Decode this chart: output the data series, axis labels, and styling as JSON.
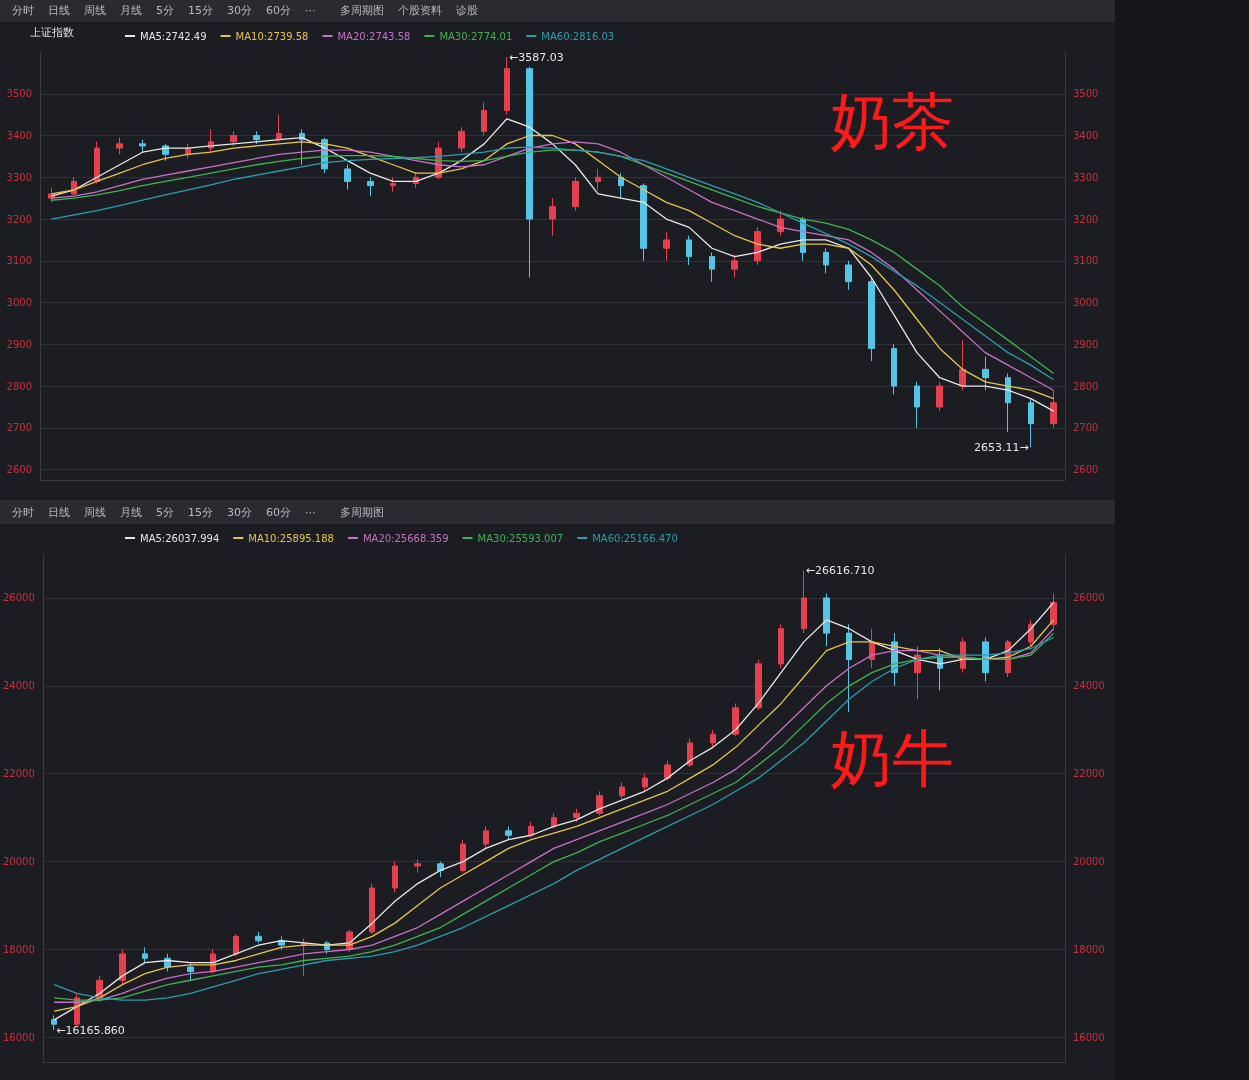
{
  "chart_data": [
    {
      "type": "candlestick",
      "title": "奶茶",
      "subtitle": "上证指数",
      "colors": [
        "#e5404e",
        "#e5404e",
        "#e5404e",
        "#e5404e",
        "#54c5e6",
        "#54c5e6",
        "#e5404e",
        "#e5404e",
        "#e5404e",
        "#54c5e6",
        "#e5404e",
        "#54c5e6",
        "#54c5e6",
        "#54c5e6",
        "#54c5e6",
        "#e5404e",
        "#e5404e",
        "#e5404e",
        "#e5404e",
        "#e5404e",
        "#e5404e",
        "#54c5e6",
        "#e5404e",
        "#e5404e",
        "#e5404e",
        "#54c5e6",
        "#54c5e6",
        "#e5404e",
        "#54c5e6",
        "#54c5e6",
        "#e5404e",
        "#e5404e",
        "#e5404e",
        "#54c5e6",
        "#54c5e6",
        "#54c5e6",
        "#54c5e6",
        "#54c5e6",
        "#54c5e6",
        "#e5404e",
        "#e5404e",
        "#54c5e6",
        "#54c5e6",
        "#54c5e6",
        "#e5404e"
      ],
      "categories": [
        null,
        null,
        null,
        null,
        null,
        null,
        null,
        null,
        null,
        null,
        null,
        null,
        null,
        null,
        null,
        null,
        null,
        null,
        null,
        null,
        null,
        null,
        null,
        null,
        null,
        null,
        null,
        null,
        null,
        null,
        null,
        null,
        null,
        null,
        null,
        null,
        null,
        null,
        null,
        null,
        null,
        null,
        null,
        null,
        null
      ],
      "ohlc": [
        [
          3250,
          3275,
          3240,
          3260
        ],
        [
          3260,
          3300,
          3255,
          3290
        ],
        [
          3290,
          3385,
          3285,
          3370
        ],
        [
          3370,
          3395,
          3355,
          3380
        ],
        [
          3380,
          3390,
          3360,
          3375
        ],
        [
          3375,
          3380,
          3340,
          3355
        ],
        [
          3355,
          3380,
          3345,
          3370
        ],
        [
          3370,
          3415,
          3360,
          3385
        ],
        [
          3385,
          3410,
          3375,
          3400
        ],
        [
          3400,
          3410,
          3380,
          3390
        ],
        [
          3390,
          3450,
          3385,
          3405
        ],
        [
          3405,
          3415,
          3330,
          3390
        ],
        [
          3390,
          3395,
          3310,
          3320
        ],
        [
          3320,
          3330,
          3270,
          3290
        ],
        [
          3290,
          3300,
          3255,
          3280
        ],
        [
          3280,
          3300,
          3265,
          3285
        ],
        [
          3285,
          3310,
          3275,
          3300
        ],
        [
          3300,
          3385,
          3295,
          3370
        ],
        [
          3370,
          3420,
          3360,
          3410
        ],
        [
          3410,
          3480,
          3400,
          3460
        ],
        [
          3460,
          3587.03,
          3450,
          3560
        ],
        [
          3560,
          3565,
          3060,
          3200
        ],
        [
          3200,
          3250,
          3160,
          3230
        ],
        [
          3230,
          3300,
          3220,
          3290
        ],
        [
          3290,
          3320,
          3270,
          3300
        ],
        [
          3300,
          3310,
          3250,
          3280
        ],
        [
          3280,
          3285,
          3100,
          3130
        ],
        [
          3130,
          3170,
          3100,
          3150
        ],
        [
          3150,
          3160,
          3090,
          3110
        ],
        [
          3110,
          3120,
          3050,
          3080
        ],
        [
          3080,
          3115,
          3060,
          3100
        ],
        [
          3100,
          3180,
          3090,
          3170
        ],
        [
          3170,
          3220,
          3160,
          3200
        ],
        [
          3200,
          3205,
          3100,
          3120
        ],
        [
          3120,
          3130,
          3070,
          3090
        ],
        [
          3090,
          3100,
          3030,
          3050
        ],
        [
          3050,
          3060,
          2860,
          2890
        ],
        [
          2890,
          2900,
          2780,
          2800
        ],
        [
          2800,
          2810,
          2700,
          2750
        ],
        [
          2750,
          2810,
          2740,
          2800
        ],
        [
          2800,
          2910,
          2790,
          2840
        ],
        [
          2840,
          2870,
          2790,
          2820
        ],
        [
          2820,
          2830,
          2690,
          2760
        ],
        [
          2760,
          2770,
          2653.11,
          2710
        ],
        [
          2710,
          2790,
          2700,
          2760
        ]
      ],
      "series": [
        {
          "name": "MA5:2742.49",
          "type": "line",
          "color": "#e8e8e8",
          "values": [
            3255,
            3270,
            3300,
            3330,
            3360,
            3370,
            3370,
            3375,
            3380,
            3385,
            3390,
            3395,
            3370,
            3340,
            3310,
            3290,
            3290,
            3310,
            3340,
            3380,
            3440,
            3420,
            3380,
            3330,
            3260,
            3250,
            3240,
            3200,
            3180,
            3130,
            3110,
            3120,
            3140,
            3150,
            3150,
            3130,
            3060,
            2970,
            2880,
            2820,
            2800,
            2800,
            2790,
            2770,
            2740
          ]
        },
        {
          "name": "MA10:2739.58",
          "type": "line",
          "color": "#e6c44c",
          "values": [
            3260,
            3270,
            3290,
            3310,
            3330,
            3345,
            3355,
            3360,
            3370,
            3375,
            3380,
            3385,
            3380,
            3370,
            3350,
            3330,
            3310,
            3310,
            3320,
            3340,
            3380,
            3400,
            3400,
            3380,
            3340,
            3300,
            3270,
            3240,
            3220,
            3190,
            3160,
            3140,
            3130,
            3140,
            3140,
            3130,
            3090,
            3030,
            2960,
            2890,
            2840,
            2810,
            2800,
            2790,
            2770
          ]
        },
        {
          "name": "MA20:2743.58",
          "type": "line",
          "color": "#c86fc9",
          "values": [
            3250,
            3255,
            3265,
            3280,
            3295,
            3305,
            3315,
            3325,
            3335,
            3345,
            3355,
            3360,
            3365,
            3365,
            3360,
            3350,
            3340,
            3330,
            3325,
            3330,
            3350,
            3370,
            3380,
            3385,
            3380,
            3360,
            3330,
            3300,
            3270,
            3240,
            3220,
            3200,
            3180,
            3170,
            3160,
            3150,
            3120,
            3080,
            3030,
            2980,
            2930,
            2880,
            2850,
            2820,
            2790
          ]
        },
        {
          "name": "MA30:2774.01",
          "type": "line",
          "color": "#3fb34f",
          "values": [
            3245,
            3250,
            3258,
            3268,
            3280,
            3290,
            3300,
            3310,
            3320,
            3330,
            3338,
            3345,
            3350,
            3352,
            3352,
            3350,
            3345,
            3340,
            3338,
            3340,
            3350,
            3360,
            3365,
            3365,
            3360,
            3350,
            3330,
            3310,
            3290,
            3270,
            3250,
            3230,
            3215,
            3200,
            3190,
            3175,
            3150,
            3120,
            3080,
            3040,
            2990,
            2950,
            2910,
            2870,
            2830
          ]
        },
        {
          "name": "MA60:2816.03",
          "type": "line",
          "color": "#2a9db0",
          "values": [
            3200,
            3210,
            3220,
            3232,
            3245,
            3258,
            3270,
            3282,
            3295,
            3305,
            3315,
            3325,
            3335,
            3340,
            3343,
            3345,
            3347,
            3350,
            3355,
            3360,
            3370,
            3372,
            3370,
            3365,
            3360,
            3350,
            3340,
            3320,
            3300,
            3280,
            3260,
            3240,
            3215,
            3190,
            3165,
            3140,
            3110,
            3075,
            3040,
            3000,
            2960,
            2920,
            2880,
            2850,
            2815
          ]
        }
      ],
      "ylim": [
        2575,
        3600
      ],
      "yticks": [
        2600,
        2700,
        2800,
        2900,
        3000,
        3100,
        3200,
        3300,
        3400,
        3500
      ],
      "y2lim": [
        2575,
        3600
      ],
      "y2ticks": [
        2600,
        2700,
        2800,
        2900,
        3000,
        3100,
        3200,
        3300,
        3400,
        3500
      ],
      "grid": "y",
      "legend": "top left",
      "marker": "none",
      "annotations": [
        "分时",
        "日线",
        "周线",
        "月线",
        "5分",
        "15分",
        "30分",
        "60分",
        "···",
        "多周期图",
        "个股资料",
        "诊股",
        "←3587.03",
        "2653.11→"
      ]
    },
    {
      "type": "candlestick",
      "title": "奶牛",
      "colors": [
        "#54c5e6",
        "#e5404e",
        "#e5404e",
        "#e5404e",
        "#54c5e6",
        "#54c5e6",
        "#54c5e6",
        "#e5404e",
        "#e5404e",
        "#54c5e6",
        "#54c5e6",
        "#e5404e",
        "#54c5e6",
        "#e5404e",
        "#e5404e",
        "#e5404e",
        "#e5404e",
        "#54c5e6",
        "#e5404e",
        "#e5404e",
        "#54c5e6",
        "#e5404e",
        "#e5404e",
        "#e5404e",
        "#e5404e",
        "#e5404e",
        "#e5404e",
        "#e5404e",
        "#e5404e",
        "#e5404e",
        "#e5404e",
        "#e5404e",
        "#e5404e",
        "#e5404e",
        "#54c5e6",
        "#54c5e6",
        "#e5404e",
        "#54c5e6",
        "#e5404e",
        "#54c5e6",
        "#e5404e",
        "#54c5e6",
        "#e5404e",
        "#e5404e",
        "#e5404e"
      ],
      "categories": [
        null,
        null,
        null,
        null,
        null,
        null,
        null,
        null,
        null,
        null,
        null,
        null,
        null,
        null,
        null,
        null,
        null,
        null,
        null,
        null,
        null,
        null,
        null,
        null,
        null,
        null,
        null,
        null,
        null,
        null,
        null,
        null,
        null,
        null,
        null,
        null,
        null,
        null,
        null,
        null,
        null,
        null,
        null,
        null,
        null
      ],
      "ohlc": [
        [
          16400,
          16500,
          16165.86,
          16300
        ],
        [
          16300,
          17000,
          16250,
          16900
        ],
        [
          16900,
          17400,
          16800,
          17300
        ],
        [
          17300,
          18000,
          17200,
          17900
        ],
        [
          17900,
          18050,
          17700,
          17800
        ],
        [
          17800,
          17900,
          17500,
          17600
        ],
        [
          17600,
          17700,
          17300,
          17500
        ],
        [
          17500,
          18000,
          17450,
          17900
        ],
        [
          17900,
          18350,
          17850,
          18300
        ],
        [
          18300,
          18400,
          18150,
          18200
        ],
        [
          18200,
          18300,
          18000,
          18100
        ],
        [
          18100,
          18250,
          17400,
          18150
        ],
        [
          18150,
          18200,
          17900,
          18000
        ],
        [
          18000,
          18450,
          17950,
          18400
        ],
        [
          18400,
          19500,
          18350,
          19400
        ],
        [
          19400,
          20000,
          19300,
          19900
        ],
        [
          19900,
          20050,
          19750,
          19950
        ],
        [
          19950,
          20000,
          19650,
          19800
        ],
        [
          19800,
          20500,
          19750,
          20400
        ],
        [
          20400,
          20800,
          20300,
          20700
        ],
        [
          20700,
          20800,
          20500,
          20600
        ],
        [
          20600,
          20900,
          20550,
          20800
        ],
        [
          20800,
          21100,
          20750,
          21000
        ],
        [
          21000,
          21200,
          20900,
          21100
        ],
        [
          21100,
          21600,
          21050,
          21500
        ],
        [
          21500,
          21800,
          21400,
          21700
        ],
        [
          21700,
          22000,
          21600,
          21900
        ],
        [
          21900,
          22300,
          21850,
          22200
        ],
        [
          22200,
          22800,
          22150,
          22700
        ],
        [
          22700,
          23000,
          22600,
          22900
        ],
        [
          22900,
          23600,
          22850,
          23500
        ],
        [
          23500,
          24600,
          23450,
          24500
        ],
        [
          24500,
          25400,
          24400,
          25300
        ],
        [
          25300,
          26616.71,
          25200,
          26000
        ],
        [
          26000,
          26100,
          24900,
          25200
        ],
        [
          25200,
          25400,
          23400,
          24600
        ],
        [
          24600,
          25300,
          24400,
          25000
        ],
        [
          25000,
          25200,
          24000,
          24300
        ],
        [
          24300,
          24900,
          23700,
          24700
        ],
        [
          24700,
          24850,
          23900,
          24400
        ],
        [
          24400,
          25100,
          24300,
          25000
        ],
        [
          25000,
          25100,
          24100,
          24300
        ],
        [
          24300,
          25050,
          24200,
          25000
        ],
        [
          25000,
          25500,
          24900,
          25400
        ],
        [
          25400,
          26100,
          25300,
          25900
        ]
      ],
      "series": [
        {
          "name": "MA5:26037.994",
          "type": "line",
          "color": "#e8e8e8",
          "values": [
            16400,
            16700,
            17000,
            17400,
            17700,
            17750,
            17700,
            17700,
            17900,
            18100,
            18200,
            18150,
            18100,
            18150,
            18600,
            19100,
            19500,
            19800,
            20000,
            20300,
            20500,
            20600,
            20800,
            20950,
            21200,
            21400,
            21600,
            21900,
            22300,
            22600,
            23000,
            23600,
            24300,
            25000,
            25500,
            25300,
            25000,
            24800,
            24600,
            24500,
            24600,
            24600,
            24800,
            25300,
            25900
          ]
        },
        {
          "name": "MA10:25895.188",
          "type": "line",
          "color": "#e6c44c",
          "values": [
            16600,
            16700,
            16900,
            17200,
            17450,
            17600,
            17650,
            17650,
            17750,
            17900,
            18050,
            18100,
            18100,
            18100,
            18300,
            18600,
            19000,
            19400,
            19700,
            20000,
            20300,
            20500,
            20650,
            20800,
            21000,
            21200,
            21400,
            21600,
            21900,
            22200,
            22600,
            23100,
            23600,
            24200,
            24800,
            25000,
            25000,
            24900,
            24800,
            24800,
            24600,
            24600,
            24650,
            24900,
            25500
          ]
        },
        {
          "name": "MA20:25668.359",
          "type": "line",
          "color": "#c86fc9",
          "values": [
            16800,
            16800,
            16850,
            17000,
            17200,
            17350,
            17450,
            17500,
            17600,
            17700,
            17800,
            17900,
            17950,
            18000,
            18100,
            18300,
            18500,
            18800,
            19100,
            19400,
            19700,
            20000,
            20300,
            20500,
            20700,
            20900,
            21100,
            21300,
            21550,
            21800,
            22100,
            22500,
            23000,
            23500,
            24000,
            24400,
            24700,
            24800,
            24800,
            24700,
            24650,
            24600,
            24600,
            24750,
            25300
          ]
        },
        {
          "name": "MA30:25593.007",
          "type": "line",
          "color": "#3fb34f",
          "values": [
            16900,
            16850,
            16850,
            16900,
            17050,
            17200,
            17300,
            17400,
            17500,
            17600,
            17650,
            17750,
            17800,
            17850,
            17950,
            18100,
            18300,
            18500,
            18800,
            19100,
            19400,
            19700,
            20000,
            20200,
            20450,
            20650,
            20850,
            21050,
            21300,
            21550,
            21800,
            22200,
            22600,
            23100,
            23600,
            24000,
            24300,
            24500,
            24600,
            24650,
            24650,
            24600,
            24600,
            24700,
            25200
          ]
        },
        {
          "name": "MA60:25166.470",
          "type": "line",
          "color": "#2a9db0",
          "values": [
            17200,
            17000,
            16900,
            16850,
            16850,
            16900,
            17000,
            17150,
            17300,
            17450,
            17550,
            17650,
            17750,
            17800,
            17850,
            17950,
            18100,
            18300,
            18500,
            18750,
            19000,
            19250,
            19500,
            19800,
            20050,
            20300,
            20550,
            20800,
            21050,
            21300,
            21600,
            21900,
            22300,
            22700,
            23200,
            23700,
            24100,
            24400,
            24600,
            24700,
            24700,
            24700,
            24750,
            24850,
            25100
          ]
        }
      ],
      "ylim": [
        15440,
        27000
      ],
      "yticks": [
        16000,
        18000,
        20000,
        22000,
        24000,
        26000
      ],
      "y2lim": [
        15440,
        27000
      ],
      "y2ticks": [
        16000,
        18000,
        20000,
        22000,
        24000,
        26000
      ],
      "grid": "y",
      "legend": "top left",
      "marker": "none",
      "annotations": [
        "分时",
        "日线",
        "周线",
        "月线",
        "5分",
        "15分",
        "30分",
        "60分",
        "···",
        "多周期图",
        "←26616.710",
        "←16165.860"
      ]
    }
  ]
}
